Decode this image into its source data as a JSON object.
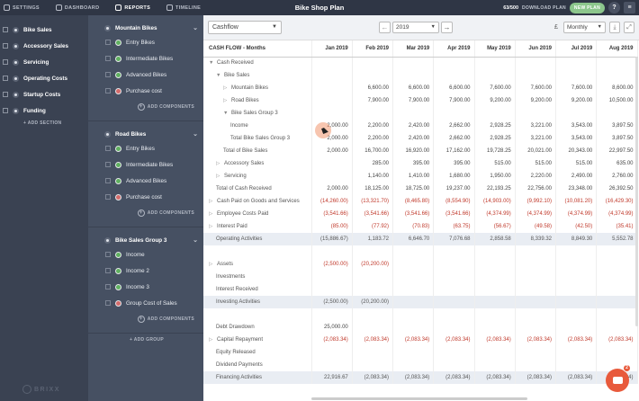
{
  "topbar": {
    "nav": [
      {
        "label": "SETTINGS",
        "icon": "gear-icon"
      },
      {
        "label": "DASHBOARD",
        "icon": "dashboard-icon"
      },
      {
        "label": "REPORTS",
        "icon": "reports-icon"
      },
      {
        "label": "TIMELINE",
        "icon": "timeline-icon"
      }
    ],
    "title": "Bike Shop Plan",
    "usage": "63/500",
    "download_plan": "DOWNLOAD PLAN",
    "new_plan": "NEW PLAN",
    "help": "?"
  },
  "sidebar": {
    "sections": [
      "Bike Sales",
      "Accessory Sales",
      "Servicing",
      "Operating Costs",
      "Startup Costs",
      "Funding"
    ],
    "add_section": "+ ADD SECTION",
    "brand": "BRIXX"
  },
  "groups": [
    {
      "name": "Mountain Bikes",
      "items": [
        {
          "label": "Entry Bikes",
          "status": "green"
        },
        {
          "label": "Intermediate Bikes",
          "status": "green"
        },
        {
          "label": "Advanced Bikes",
          "status": "green"
        },
        {
          "label": "Purchase cost",
          "status": "red"
        }
      ]
    },
    {
      "name": "Road Bikes",
      "items": [
        {
          "label": "Entry Bikes",
          "status": "green"
        },
        {
          "label": "Intermediate Bikes",
          "status": "green"
        },
        {
          "label": "Advanced Bikes",
          "status": "green"
        },
        {
          "label": "Purchase cost",
          "status": "red"
        }
      ]
    },
    {
      "name": "Bike Sales Group 3",
      "items": [
        {
          "label": "Income",
          "status": "green"
        },
        {
          "label": "Income 2",
          "status": "green"
        },
        {
          "label": "Income 3",
          "status": "green"
        },
        {
          "label": "Group Cost of Sales",
          "status": "red"
        }
      ]
    }
  ],
  "add_components": "ADD COMPONENTS",
  "add_group": "+ ADD GROUP",
  "toolbar": {
    "view": "Cashflow",
    "year": "2019",
    "currency": "£",
    "period": "Monthly"
  },
  "table": {
    "header_label": "CASH FLOW - Months",
    "columns": [
      "Jan 2019",
      "Feb 2019",
      "Mar 2019",
      "Apr 2019",
      "May 2019",
      "Jun 2019",
      "Jul 2019",
      "Aug 2019"
    ],
    "rows": [
      {
        "label": "Cash Received",
        "indent": 0,
        "tri": "open",
        "values": [
          "",
          "",
          "",
          "",
          "",
          "",
          "",
          ""
        ]
      },
      {
        "label": "Bike Sales",
        "indent": 1,
        "tri": "open",
        "values": [
          "",
          "",
          "",
          "",
          "",
          "",
          "",
          ""
        ]
      },
      {
        "label": "Mountain Bikes",
        "indent": 2,
        "tri": "closed",
        "values": [
          "",
          "6,600.00",
          "6,600.00",
          "6,600.00",
          "7,600.00",
          "7,600.00",
          "7,600.00",
          "8,600.00"
        ]
      },
      {
        "label": "Road Bikes",
        "indent": 2,
        "tri": "closed",
        "values": [
          "",
          "7,900.00",
          "7,900.00",
          "7,900.00",
          "9,200.00",
          "9,200.00",
          "9,200.00",
          "10,500.00"
        ]
      },
      {
        "label": "Bike Sales Group 3",
        "indent": 2,
        "tri": "open",
        "values": [
          "",
          "",
          "",
          "",
          "",
          "",
          "",
          ""
        ]
      },
      {
        "label": "Income",
        "indent": 3,
        "tri": "",
        "values": [
          "2,000.00",
          "2,200.00",
          "2,420.00",
          "2,662.00",
          "2,928.25",
          "3,221.00",
          "3,543.00",
          "3,897.50"
        ]
      },
      {
        "label": "Total Bike Sales Group 3",
        "indent": 3,
        "tri": "",
        "values": [
          "2,000.00",
          "2,200.00",
          "2,420.00",
          "2,662.00",
          "2,928.25",
          "3,221.00",
          "3,543.00",
          "3,897.50"
        ]
      },
      {
        "label": "Total of Bike Sales",
        "indent": 2,
        "tri": "",
        "values": [
          "2,000.00",
          "16,700.00",
          "16,920.00",
          "17,162.00",
          "19,728.25",
          "20,021.00",
          "20,343.00",
          "22,997.50"
        ]
      },
      {
        "label": "Accessory Sales",
        "indent": 1,
        "tri": "closed",
        "values": [
          "",
          "285.00",
          "395.00",
          "395.00",
          "515.00",
          "515.00",
          "515.00",
          "635.00"
        ]
      },
      {
        "label": "Servicing",
        "indent": 1,
        "tri": "closed",
        "values": [
          "",
          "1,140.00",
          "1,410.00",
          "1,680.00",
          "1,950.00",
          "2,220.00",
          "2,490.00",
          "2,760.00"
        ]
      },
      {
        "label": "Total of Cash Received",
        "indent": 1,
        "tri": "",
        "values": [
          "2,000.00",
          "18,125.00",
          "18,725.00",
          "19,237.00",
          "22,193.25",
          "22,756.00",
          "23,348.00",
          "26,392.50"
        ]
      },
      {
        "label": "Cash Paid on Goods and Services",
        "indent": 0,
        "tri": "closed",
        "values": [
          "(14,260.00)",
          "(13,321.70)",
          "(8,465.80)",
          "(8,554.90)",
          "(14,903.00)",
          "(9,992.10)",
          "(10,081.20)",
          "(16,429.30)"
        ]
      },
      {
        "label": "Employee Costs Paid",
        "indent": 0,
        "tri": "closed",
        "values": [
          "(3,541.66)",
          "(3,541.66)",
          "(3,541.66)",
          "(3,541.66)",
          "(4,374.99)",
          "(4,374.99)",
          "(4,374.99)",
          "(4,374.99)"
        ]
      },
      {
        "label": "Interest Paid",
        "indent": 0,
        "tri": "closed",
        "values": [
          "(85.00)",
          "(77.92)",
          "(70.83)",
          "(63.75)",
          "(56.67)",
          "(49.58)",
          "(42.50)",
          "(35.41)"
        ]
      },
      {
        "label": "Operating Activities",
        "indent": 1,
        "tri": "",
        "total": true,
        "values": [
          "(15,886.67)",
          "1,183.72",
          "6,646.70",
          "7,076.68",
          "2,858.58",
          "8,339.32",
          "8,849.30",
          "5,552.78"
        ]
      },
      {
        "label": "",
        "indent": 0,
        "tri": "",
        "values": [
          "",
          "",
          "",
          "",
          "",
          "",
          "",
          ""
        ]
      },
      {
        "label": "Assets",
        "indent": 0,
        "tri": "closed",
        "values": [
          "(2,500.00)",
          "(20,200.00)",
          "",
          "",
          "",
          "",
          "",
          ""
        ]
      },
      {
        "label": "Investments",
        "indent": 1,
        "tri": "",
        "values": [
          "",
          "",
          "",
          "",
          "",
          "",
          "",
          ""
        ]
      },
      {
        "label": "Interest Received",
        "indent": 1,
        "tri": "",
        "values": [
          "",
          "",
          "",
          "",
          "",
          "",
          "",
          ""
        ]
      },
      {
        "label": "Investing Activities",
        "indent": 1,
        "tri": "",
        "total": true,
        "values": [
          "(2,500.00)",
          "(20,200.00)",
          "",
          "",
          "",
          "",
          "",
          ""
        ]
      },
      {
        "label": "",
        "indent": 0,
        "tri": "",
        "values": [
          "",
          "",
          "",
          "",
          "",
          "",
          "",
          ""
        ]
      },
      {
        "label": "Debt Drawdown",
        "indent": 1,
        "tri": "",
        "values": [
          "25,000.00",
          "",
          "",
          "",
          "",
          "",
          "",
          ""
        ]
      },
      {
        "label": "Capital Repayment",
        "indent": 0,
        "tri": "closed",
        "values": [
          "(2,083.34)",
          "(2,083.34)",
          "(2,083.34)",
          "(2,083.34)",
          "(2,083.34)",
          "(2,083.34)",
          "(2,083.34)",
          "(2,083.34)"
        ]
      },
      {
        "label": "Equity Released",
        "indent": 1,
        "tri": "",
        "values": [
          "",
          "",
          "",
          "",
          "",
          "",
          "",
          ""
        ]
      },
      {
        "label": "Dividend Payments",
        "indent": 1,
        "tri": "",
        "values": [
          "",
          "",
          "",
          "",
          "",
          "",
          "",
          ""
        ]
      },
      {
        "label": "Financing Activities",
        "indent": 1,
        "tri": "",
        "total": true,
        "values": [
          "22,916.67",
          "(2,083.34)",
          "(2,083.34)",
          "(2,083.34)",
          "(2,083.34)",
          "(2,083.34)",
          "(2,083.34)",
          "(2,083.34)"
        ]
      }
    ]
  },
  "chat": {
    "badge": "2"
  }
}
